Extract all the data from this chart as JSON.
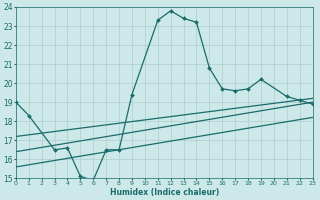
{
  "xlabel": "Humidex (Indice chaleur)",
  "xlim": [
    0,
    23
  ],
  "ylim": [
    15,
    24
  ],
  "xticks": [
    0,
    1,
    2,
    3,
    4,
    5,
    6,
    7,
    8,
    9,
    10,
    11,
    12,
    13,
    14,
    15,
    16,
    17,
    18,
    19,
    20,
    21,
    22,
    23
  ],
  "yticks": [
    15,
    16,
    17,
    18,
    19,
    20,
    21,
    22,
    23,
    24
  ],
  "bg_color": "#cde8e8",
  "grid_color": "#b0cccc",
  "line_color": "#1a6b6b",
  "line_width": 0.9,
  "marker": "D",
  "marker_size": 2.0,
  "line1_x": [
    0,
    1,
    3,
    4,
    5,
    6,
    7,
    8,
    9,
    11,
    12,
    13,
    14,
    15,
    16,
    17,
    18,
    19,
    21,
    22,
    23
  ],
  "line1_y": [
    19.0,
    18.3,
    16.5,
    16.6,
    15.1,
    14.9,
    16.5,
    16.5,
    19.4,
    23.3,
    23.8,
    23.4,
    23.2,
    20.8,
    19.7,
    19.6,
    19.7,
    20.2,
    19.3,
    19.1,
    18.9
  ],
  "line2_x": [
    0,
    23
  ],
  "line2_y": [
    17.2,
    19.2
  ],
  "line3_x": [
    0,
    23
  ],
  "line3_y": [
    16.4,
    19.0
  ],
  "line4_x": [
    0,
    23
  ],
  "line4_y": [
    15.6,
    18.2
  ]
}
